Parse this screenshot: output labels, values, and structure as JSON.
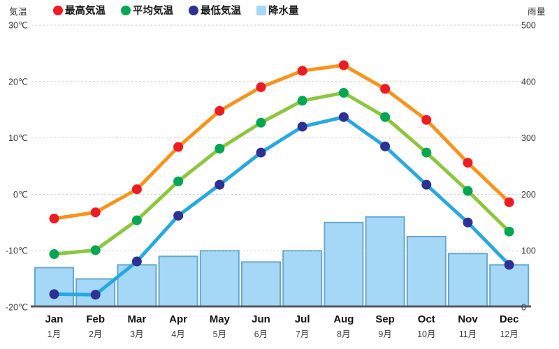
{
  "header": {
    "left_axis_title": "気温",
    "right_axis_title": "雨量"
  },
  "legend": {
    "items": [
      {
        "label": "最高気温",
        "icon": "red-circle",
        "shape": "circle",
        "color": "#ED1C24"
      },
      {
        "label": "平均気温",
        "icon": "green-circle",
        "shape": "circle",
        "color": "#00A650"
      },
      {
        "label": "最低気温",
        "icon": "navy-circle",
        "shape": "circle",
        "color": "#2D3193"
      },
      {
        "label": "降水量",
        "icon": "blue-square",
        "shape": "square",
        "color": "#A5D8F6"
      }
    ]
  },
  "axes": {
    "temp_tick_labels": [
      "30℃",
      "20℃",
      "10℃",
      "0℃",
      "-10℃",
      "-20℃"
    ],
    "temp_tick_values": [
      30,
      20,
      10,
      0,
      -10,
      -20
    ],
    "temp_range": [
      -20,
      30
    ],
    "rain_tick_labels": [
      "500",
      "400",
      "300",
      "200",
      "100",
      "0"
    ],
    "rain_tick_values": [
      500,
      400,
      300,
      200,
      100,
      0
    ],
    "rain_range": [
      0,
      500
    ],
    "grid": "dashed-horizontal"
  },
  "chart_data": {
    "type": "combo-bar-line",
    "categories_en": [
      "Jan",
      "Feb",
      "Mar",
      "Apr",
      "May",
      "Jun",
      "Jul",
      "Aug",
      "Sep",
      "Oct",
      "Nov",
      "Dec"
    ],
    "categories_jp": [
      "1月",
      "2月",
      "3月",
      "4月",
      "5月",
      "6月",
      "7月",
      "8月",
      "9月",
      "10月",
      "11月",
      "12月"
    ],
    "series": [
      {
        "name": "最高気温",
        "type": "line",
        "axis": "left",
        "line_color": "#F7941D",
        "dot_color": "#ED1C24",
        "values": [
          -4.3,
          -3.2,
          0.9,
          8.4,
          14.8,
          19.0,
          21.9,
          22.9,
          18.7,
          13.2,
          5.6,
          -1.4
        ]
      },
      {
        "name": "平均気温",
        "type": "line",
        "axis": "left",
        "line_color": "#8CC63F",
        "dot_color": "#00A650",
        "values": [
          -10.6,
          -9.9,
          -4.6,
          2.3,
          8.1,
          12.7,
          16.6,
          18.0,
          13.7,
          7.4,
          0.6,
          -6.6
        ]
      },
      {
        "name": "最低気温",
        "type": "line",
        "axis": "left",
        "line_color": "#29A8E0",
        "dot_color": "#2D3193",
        "values": [
          -17.7,
          -17.8,
          -11.9,
          -3.8,
          1.7,
          7.4,
          12.0,
          13.7,
          8.5,
          1.7,
          -5.0,
          -12.5
        ]
      },
      {
        "name": "降水量",
        "type": "bar",
        "axis": "right",
        "fill_color": "#A5D8F6",
        "border_color": "#68A7CF",
        "values": [
          70,
          50,
          75,
          90,
          100,
          80,
          100,
          150,
          160,
          125,
          95,
          75
        ]
      }
    ],
    "ylabel_left": "気温",
    "ylabel_right": "雨量",
    "ylim_left": [
      -20,
      30
    ],
    "ylim_right": [
      0,
      500
    ],
    "legend_position": "top"
  },
  "colors": {
    "gridline": "#c9c9c9",
    "baseline": "#58595B",
    "background": "#ffffff"
  }
}
